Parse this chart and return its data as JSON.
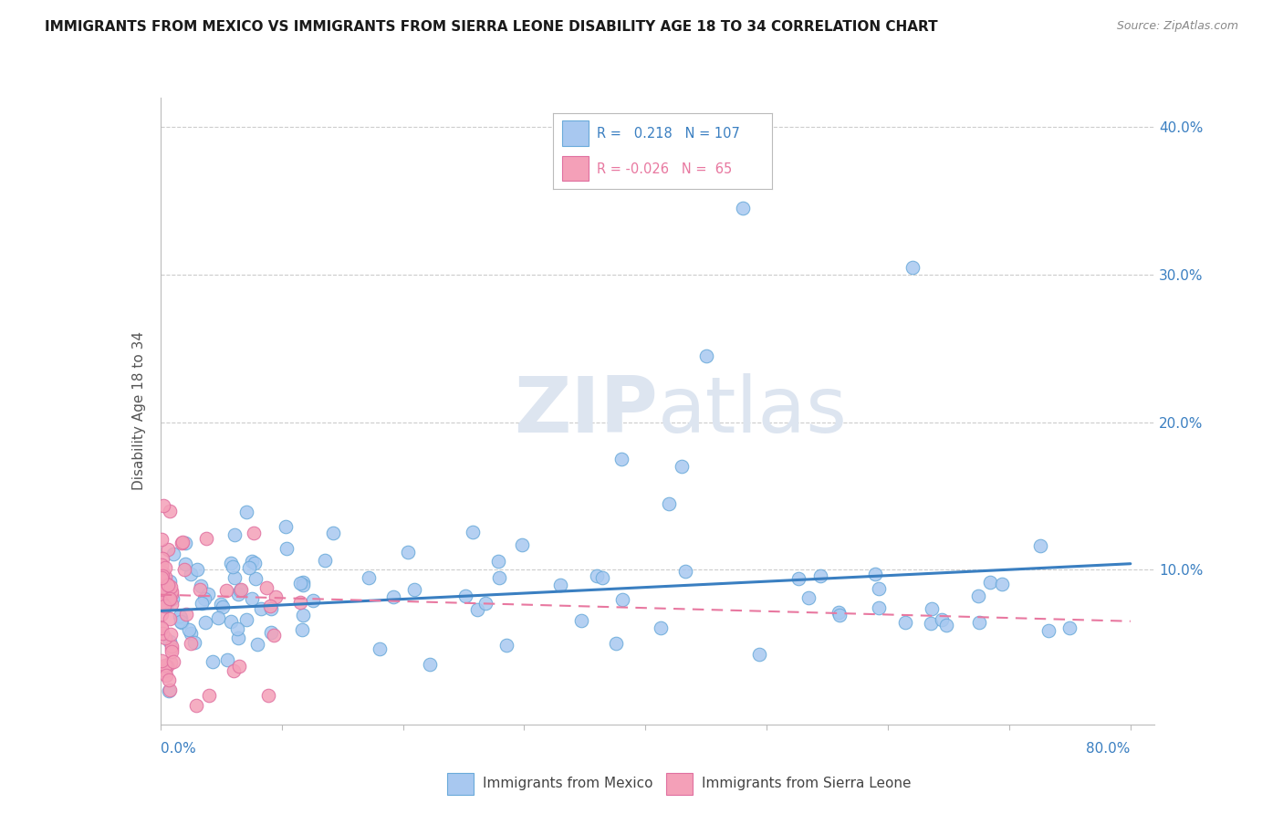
{
  "title": "IMMIGRANTS FROM MEXICO VS IMMIGRANTS FROM SIERRA LEONE DISABILITY AGE 18 TO 34 CORRELATION CHART",
  "source": "Source: ZipAtlas.com",
  "ylabel": "Disability Age 18 to 34",
  "xlim": [
    0.0,
    0.82
  ],
  "ylim": [
    -0.005,
    0.42
  ],
  "yticks": [
    0.0,
    0.1,
    0.2,
    0.3,
    0.4
  ],
  "ytick_labels_right": [
    "",
    "10.0%",
    "20.0%",
    "30.0%",
    "40.0%"
  ],
  "xtick_left_label": "0.0%",
  "xtick_right_label": "80.0%",
  "legend_label1": "Immigrants from Mexico",
  "legend_label2": "Immigrants from Sierra Leone",
  "color_mexico": "#a8c8f0",
  "color_mexico_edge": "#6aaada",
  "color_mexico_line": "#3a7fc1",
  "color_sierra": "#f4a0b8",
  "color_sierra_edge": "#e070a0",
  "color_sierra_line": "#e878a0",
  "watermark_color": "#dde5f0",
  "background_color": "#ffffff",
  "grid_color": "#cccccc",
  "mexico_trend_x": [
    0.0,
    0.8
  ],
  "mexico_trend_y": [
    0.072,
    0.104
  ],
  "sierra_trend_x": [
    0.0,
    0.8
  ],
  "sierra_trend_y": [
    0.083,
    0.065
  ]
}
